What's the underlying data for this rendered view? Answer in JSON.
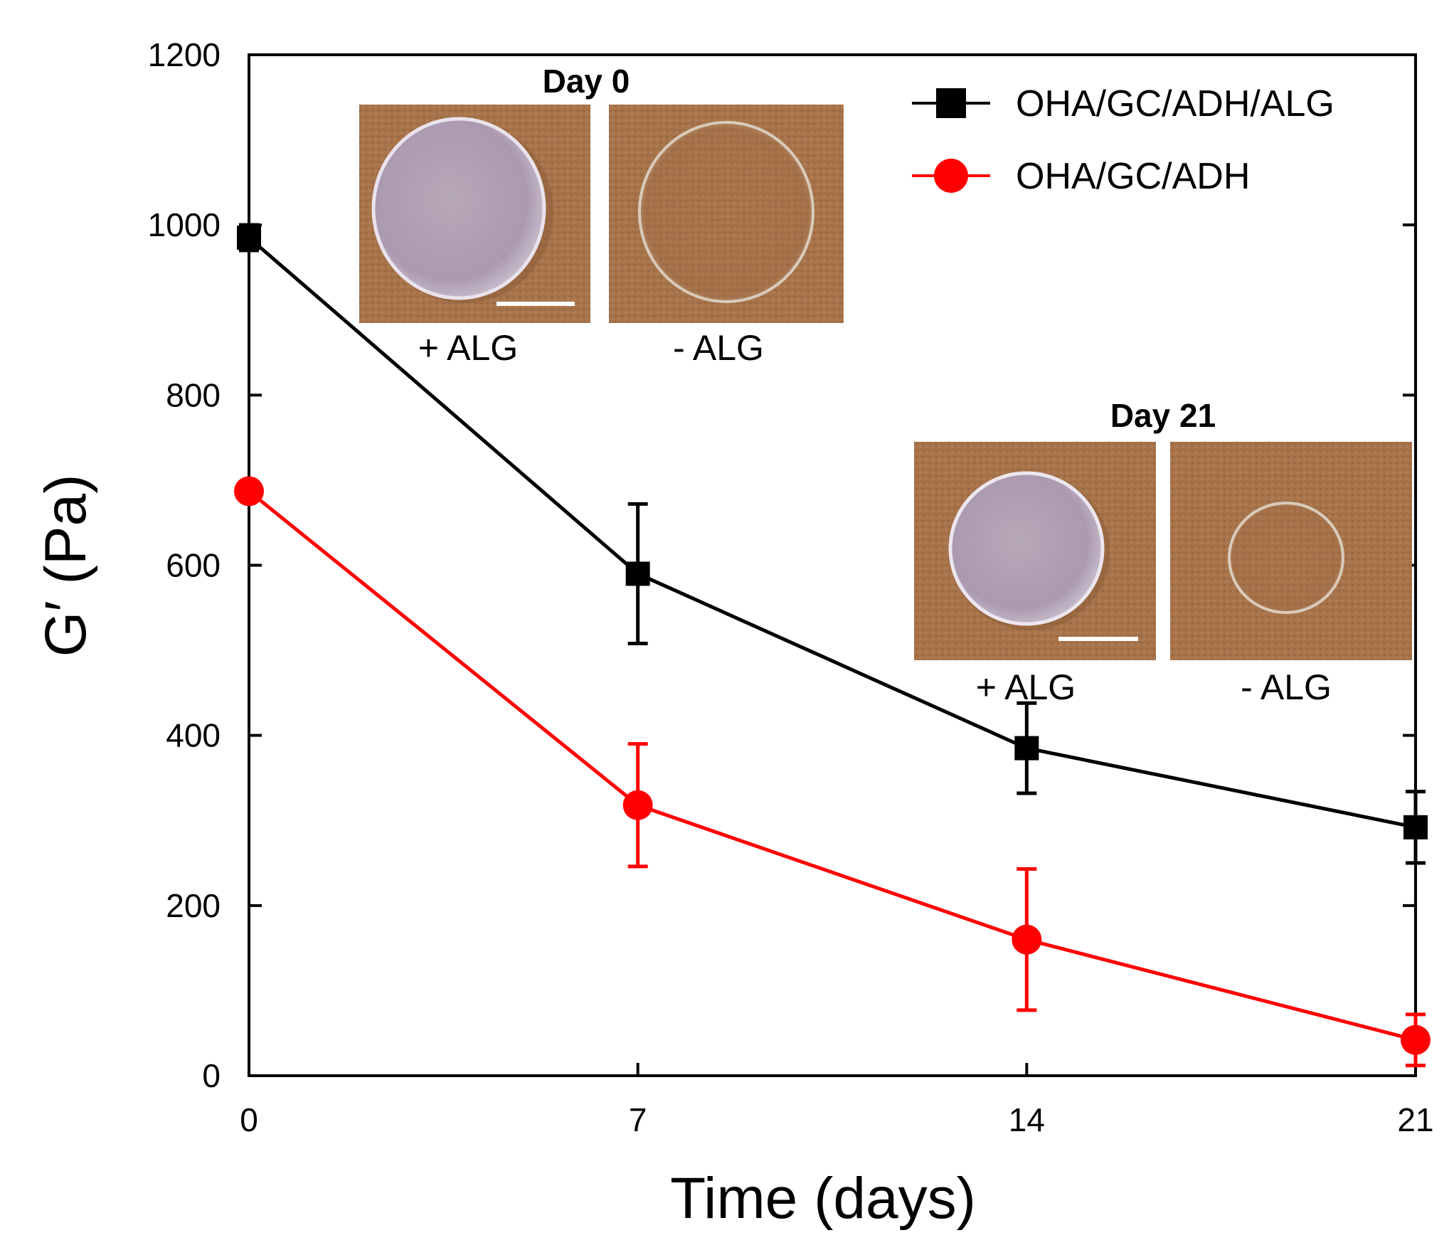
{
  "chart_data": {
    "type": "line",
    "xlabel": "Time (days)",
    "ylabel": "G′ (Pa)",
    "x": [
      0,
      7,
      14,
      21
    ],
    "xticks": [
      "0",
      "7",
      "14",
      "21"
    ],
    "xlim": [
      0,
      21
    ],
    "yticks": [
      "0",
      "200",
      "400",
      "600",
      "800",
      "1000",
      "1200"
    ],
    "ylim": [
      0,
      1200
    ],
    "grid": false,
    "legend_position": "top-right",
    "series": [
      {
        "name": "OHA/GC/ADH/ALG",
        "color": "#000000",
        "marker": "square",
        "values": [
          985,
          590,
          385,
          292
        ],
        "errors": [
          15,
          82,
          53,
          42
        ]
      },
      {
        "name": "OHA/GC/ADH",
        "color": "#ff0000",
        "marker": "circle",
        "values": [
          687,
          318,
          160,
          42
        ],
        "errors": [
          10,
          72,
          83,
          30
        ]
      }
    ],
    "insets": [
      {
        "title": "Day 0",
        "labels": [
          "+ ALG",
          "- ALG"
        ]
      },
      {
        "title": "Day 21",
        "labels": [
          "+ ALG",
          "- ALG"
        ]
      }
    ]
  }
}
